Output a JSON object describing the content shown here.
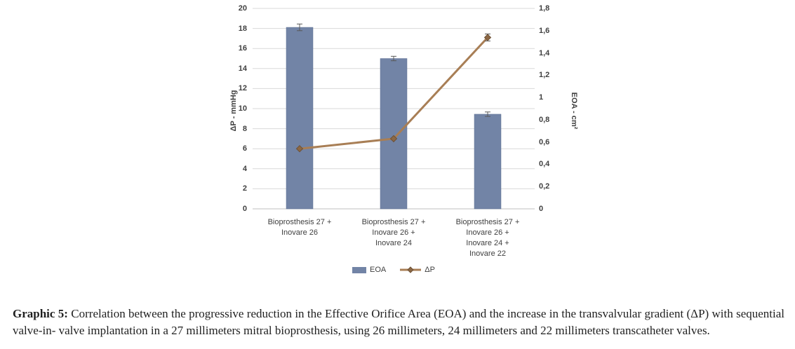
{
  "chart_data": {
    "type": "combo-bar-line",
    "title": "",
    "categories": [
      [
        "Bioprosthesis 27 +",
        "Inovare 26"
      ],
      [
        "Bioprosthesis 27 +",
        "Inovare 26 +",
        "Inovare 24"
      ],
      [
        "Bioprosthesis 27 +",
        "Inovare 26 +",
        "Inovare 24 +",
        "Inovare 22"
      ]
    ],
    "series": [
      {
        "name": "EOA",
        "type": "bar",
        "axis": "right",
        "values": [
          1.63,
          1.35,
          0.85
        ],
        "errors": [
          0.03,
          0.02,
          0.02
        ],
        "color": "#7284a6"
      },
      {
        "name": "ΔP",
        "type": "line",
        "axis": "left",
        "values": [
          6,
          7,
          17.1
        ],
        "errors": [
          0,
          0,
          0.35
        ],
        "color": "#a87e55"
      }
    ],
    "left_axis": {
      "label": "ΔP - mmHg",
      "min": 0,
      "max": 20,
      "step": 2,
      "ticks_top_to_bottom": [
        "20",
        "18",
        "16",
        "14",
        "12",
        "10",
        "8",
        "6",
        "4",
        "2",
        "0"
      ]
    },
    "right_axis": {
      "label": "EOA - cm²",
      "min": 0,
      "max": 1.8,
      "step": 0.2,
      "ticks_top_to_bottom": [
        "1,8",
        "1,6",
        "1,4",
        "1,2",
        "1",
        "0,8",
        "0,6",
        "0,4",
        "0,2",
        "0"
      ]
    },
    "grid": true,
    "legend_position": "bottom"
  },
  "legend": [
    {
      "label": "EOA",
      "marker": "bar-swatch"
    },
    {
      "label": "ΔP",
      "marker": "line-diamond"
    }
  ],
  "caption": {
    "label": "Graphic 5:",
    "text": "Correlation between the progressive reduction in the Effective Orifice Area (EOA) and the increase in the transvalvular gradient (ΔP) with sequential valve-in- valve implantation in a 27 millimeters mitral bioprosthesis, using 26 millimeters, 24 millimeters and 22 millimeters transcatheter valves."
  },
  "colors": {
    "bar": "#7284a6",
    "bar_edge": "#5f7093",
    "line": "#a87e55",
    "marker_fill": "#8c6845",
    "marker_edge": "#6d5136",
    "grid": "#d9d9d9",
    "axis_line": "#bfbfbf",
    "axis_text": "#404040",
    "error": "#595959"
  }
}
